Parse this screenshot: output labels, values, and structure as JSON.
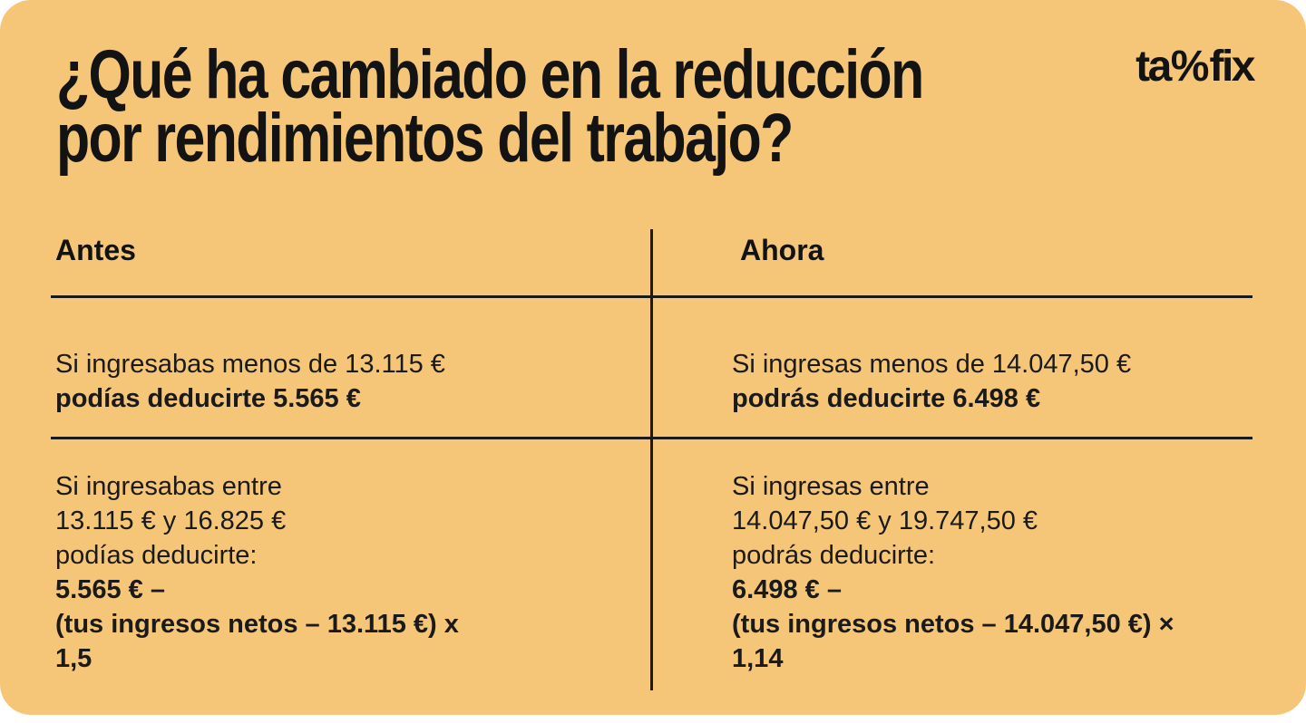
{
  "page": {
    "background_color": "#ffffff",
    "card_color": "#F6C678",
    "text_color": "#1a1a1a"
  },
  "header": {
    "title_line1": "¿Qué ha cambiado en la reducción",
    "title_line2": "por rendimientos del trabajo?",
    "brand": {
      "name": "taxfix",
      "pre": "ta",
      "x_glyph": "%",
      "post": "fix"
    }
  },
  "table": {
    "columns": [
      {
        "header": "Antes",
        "row1": {
          "condition": "Si ingresabas menos de 13.115 €",
          "deduction": "podías deducirte 5.565 €"
        },
        "row2": {
          "regular_lines": [
            "Si ingresabas entre",
            "13.115 € y 16.825 €",
            "podías deducirte:"
          ],
          "bold_lines": [
            "5.565 € –",
            "(tus ingresos netos – 13.115 €) x",
            "1,5"
          ]
        }
      },
      {
        "header": "Ahora",
        "row1": {
          "condition": "Si ingresas menos de 14.047,50 €",
          "deduction": "podrás deducirte 6.498 €"
        },
        "row2": {
          "regular_lines": [
            "Si ingresas entre",
            "14.047,50 € y 19.747,50 €",
            "podrás deducirte:"
          ],
          "bold_lines": [
            "6.498 € –",
            "(tus ingresos netos – 14.047,50 €) ×",
            "1,14"
          ]
        }
      }
    ]
  }
}
